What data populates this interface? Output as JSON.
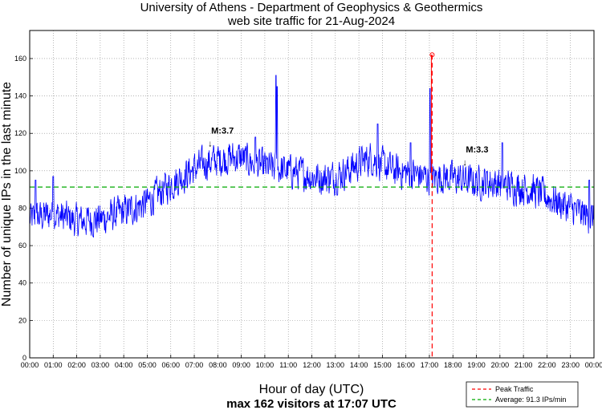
{
  "chart_data": {
    "type": "line",
    "title": "University of Athens - Department of Geophysics & Geothermics",
    "subtitle": "web site traffic for 21-Aug-2024",
    "xlabel": "Hour of day (UTC)",
    "ylabel": "Number of unique IPs in the last minute",
    "caption": "max 162 visitors at 17:07 UTC",
    "xlim_hours": [
      0,
      24
    ],
    "ylim": [
      0,
      175
    ],
    "yticks": [
      0,
      20,
      40,
      60,
      80,
      100,
      120,
      140,
      160
    ],
    "xtick_labels": [
      "00:00",
      "01:00",
      "02:00",
      "03:00",
      "04:00",
      "05:00",
      "06:00",
      "07:00",
      "08:00",
      "09:00",
      "10:00",
      "11:00",
      "12:00",
      "13:00",
      "14:00",
      "15:00",
      "16:00",
      "17:00",
      "18:00",
      "19:00",
      "20:00",
      "21:00",
      "22:00",
      "23:00",
      "00:00"
    ],
    "grid": true,
    "series_profile": {
      "name": "unique IPs",
      "color": "#0000ff",
      "hours": [
        0,
        1,
        2,
        3,
        4,
        5,
        5.5,
        6,
        6.5,
        7,
        7.5,
        8,
        8.5,
        9,
        9.5,
        10,
        10.5,
        11,
        11.5,
        12,
        12.5,
        13,
        13.5,
        14,
        14.5,
        15,
        15.5,
        16,
        16.5,
        17,
        17.5,
        18,
        18.5,
        19,
        19.5,
        20,
        20.5,
        21,
        21.5,
        22,
        22.5,
        23,
        23.5,
        24
      ],
      "values": [
        74,
        77,
        73,
        74,
        78,
        83,
        88,
        93,
        97,
        101,
        104,
        106,
        107,
        107,
        104,
        102,
        101,
        100,
        99,
        97,
        96,
        97,
        100,
        104,
        107,
        103,
        100,
        99,
        98,
        96,
        97,
        96,
        95,
        94,
        94,
        93,
        92,
        91,
        89,
        86,
        83,
        80,
        77,
        74
      ],
      "spikes": [
        {
          "hour": 0.25,
          "value": 95
        },
        {
          "hour": 1.0,
          "value": 97
        },
        {
          "hour": 7.8,
          "value": 110
        },
        {
          "hour": 9.6,
          "value": 118
        },
        {
          "hour": 10.48,
          "value": 151
        },
        {
          "hour": 10.52,
          "value": 145
        },
        {
          "hour": 14.8,
          "value": 125
        },
        {
          "hour": 16.2,
          "value": 115
        },
        {
          "hour": 17.03,
          "value": 144
        },
        {
          "hour": 20.1,
          "value": 115
        },
        {
          "hour": 23.8,
          "value": 95
        }
      ]
    },
    "peak": {
      "label": "Peak Traffic",
      "time": "17:07",
      "hour": 17.117,
      "value": 162,
      "color": "#ff0000"
    },
    "average": {
      "label": "Average: 91.3 IPs/min",
      "value": 91.3,
      "color": "#00aa00"
    },
    "annotations": [
      {
        "text": "M:3.7",
        "hour": 7.72,
        "value": 113
      },
      {
        "text": "M:3.3",
        "hour": 18.55,
        "value": 103
      }
    ],
    "legend": {
      "position": "bottom-right",
      "entries": [
        "Peak Traffic",
        "Average: 91.3 IPs/min"
      ]
    }
  }
}
